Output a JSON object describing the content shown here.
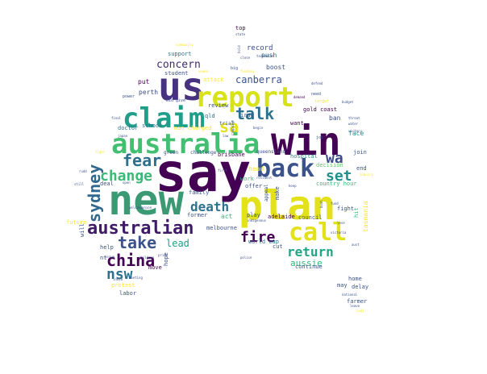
{
  "chart_data": {
    "type": "wordcloud",
    "palette": [
      "#440154",
      "#3b528b",
      "#21918c",
      "#5ec962",
      "#fde725"
    ],
    "words": [
      {
        "text": "say",
        "weight": 100,
        "color": "#440154"
      },
      {
        "text": "new",
        "weight": 95,
        "color": "#3b9a74"
      },
      {
        "text": "plan",
        "weight": 90,
        "color": "#e3e11a"
      },
      {
        "text": "win",
        "weight": 88,
        "color": "#440154"
      },
      {
        "text": "us",
        "weight": 80,
        "color": "#46327e"
      },
      {
        "text": "australia",
        "weight": 78,
        "color": "#43bf71"
      },
      {
        "text": "report",
        "weight": 70,
        "color": "#d8e219"
      },
      {
        "text": "claim",
        "weight": 66,
        "color": "#1f9e89"
      },
      {
        "text": "back",
        "weight": 62,
        "color": "#3b528b"
      },
      {
        "text": "call",
        "weight": 60,
        "color": "#e3e11a"
      },
      {
        "text": "australian",
        "weight": 52,
        "color": "#3e1a67"
      },
      {
        "text": "sydney",
        "weight": 40,
        "color": "#31688e"
      },
      {
        "text": "fear",
        "weight": 40,
        "color": "#2e6f8e"
      },
      {
        "text": "talk",
        "weight": 38,
        "color": "#2c728e"
      },
      {
        "text": "sa",
        "weight": 36,
        "color": "#e3e11a"
      },
      {
        "text": "change",
        "weight": 34,
        "color": "#3aba76"
      },
      {
        "text": "take",
        "weight": 36,
        "color": "#3b528b"
      },
      {
        "text": "china",
        "weight": 34,
        "color": "#440154"
      },
      {
        "text": "death",
        "weight": 32,
        "color": "#2c728e"
      },
      {
        "text": "return",
        "weight": 32,
        "color": "#21a585"
      },
      {
        "text": "fire",
        "weight": 32,
        "color": "#440154"
      },
      {
        "text": "wa",
        "weight": 30,
        "color": "#3e4a89"
      },
      {
        "text": "set",
        "weight": 30,
        "color": "#21918c"
      },
      {
        "text": "nsw",
        "weight": 30,
        "color": "#2c728e"
      },
      {
        "text": "concern",
        "weight": 20,
        "color": "#3f2c70"
      },
      {
        "text": "canberra",
        "weight": 18,
        "color": "#3b528b"
      },
      {
        "text": "lead",
        "weight": 18,
        "color": "#1f9e89"
      },
      {
        "text": "aussie",
        "weight": 18,
        "color": "#35b779"
      },
      {
        "text": "record",
        "weight": 13,
        "color": "#3b528b"
      },
      {
        "text": "push",
        "weight": 11,
        "color": "#31688e"
      },
      {
        "text": "boost",
        "weight": 12,
        "color": "#3b528b"
      },
      {
        "text": "support",
        "weight": 11,
        "color": "#2c728e"
      },
      {
        "text": "student",
        "weight": 10,
        "color": "#3b528b"
      },
      {
        "text": "put",
        "weight": 10,
        "color": "#440154"
      },
      {
        "text": "perth",
        "weight": 11,
        "color": "#3b528b"
      },
      {
        "text": "review",
        "weight": 10,
        "color": "#3b528b"
      },
      {
        "text": "gold coast",
        "weight": 11,
        "color": "#440154"
      },
      {
        "text": "iraq",
        "weight": 10,
        "color": "#3b528b"
      },
      {
        "text": "want",
        "weight": 10,
        "color": "#440154"
      },
      {
        "text": "ban",
        "weight": 10,
        "color": "#3b528b"
      },
      {
        "text": "face",
        "weight": 11,
        "color": "#21918c"
      },
      {
        "text": "school",
        "weight": 10,
        "color": "#2c728e"
      },
      {
        "text": "doctor",
        "weight": 10,
        "color": "#2c728e"
      },
      {
        "text": "man charged",
        "weight": 10,
        "color": "#fde725"
      },
      {
        "text": "qld",
        "weight": 10,
        "color": "#31688e"
      },
      {
        "text": "brisbane",
        "weight": 10,
        "color": "#440154"
      },
      {
        "text": "hospital",
        "weight": 10,
        "color": "#21918c"
      },
      {
        "text": "join",
        "weight": 10,
        "color": "#3b528b"
      },
      {
        "text": "decision",
        "weight": 10,
        "color": "#5ec962"
      },
      {
        "text": "end",
        "weight": 10,
        "color": "#3b528b"
      },
      {
        "text": "work",
        "weight": 10,
        "color": "#35b779"
      },
      {
        "text": "offer",
        "weight": 10,
        "color": "#3b528b"
      },
      {
        "text": "family",
        "weight": 9,
        "color": "#3b528b"
      },
      {
        "text": "country hour",
        "weight": 10,
        "color": "#35b779"
      },
      {
        "text": "fight",
        "weight": 10,
        "color": "#3b528b"
      },
      {
        "text": "make",
        "weight": 9,
        "color": "#3b528b"
      },
      {
        "text": "act",
        "weight": 10,
        "color": "#35b779"
      },
      {
        "text": "play",
        "weight": 9,
        "color": "#3b528b"
      },
      {
        "text": "adelaide",
        "weight": 10,
        "color": "#440154"
      },
      {
        "text": "council",
        "weight": 10,
        "color": "#3b528b"
      },
      {
        "text": "former",
        "weight": 10,
        "color": "#3b528b"
      },
      {
        "text": "melbourne",
        "weight": 10,
        "color": "#3b528b"
      },
      {
        "text": "world cup",
        "weight": 10,
        "color": "#2c728e"
      },
      {
        "text": "cut",
        "weight": 10,
        "color": "#3b528b"
      },
      {
        "text": "continue",
        "weight": 10,
        "color": "#3b528b"
      },
      {
        "text": "home",
        "weight": 10,
        "color": "#3b528b"
      },
      {
        "text": "may",
        "weight": 10,
        "color": "#3b528b"
      },
      {
        "text": "delay",
        "weight": 10,
        "color": "#3b528b"
      },
      {
        "text": "farmer",
        "weight": 10,
        "color": "#3b528b"
      },
      {
        "text": "hope",
        "weight": 9,
        "color": "#3b528b"
      },
      {
        "text": "move",
        "weight": 10,
        "color": "#440154"
      },
      {
        "text": "future",
        "weight": 10,
        "color": "#fde725"
      },
      {
        "text": "will",
        "weight": 9,
        "color": "#3b528b"
      },
      {
        "text": "help",
        "weight": 10,
        "color": "#3b528b"
      },
      {
        "text": "nt",
        "weight": 9,
        "color": "#3b528b"
      },
      {
        "text": "protest",
        "weight": 10,
        "color": "#fde725"
      },
      {
        "text": "labor",
        "weight": 10,
        "color": "#3b528b"
      },
      {
        "text": "deal",
        "weight": 9,
        "color": "#3b528b"
      },
      {
        "text": "head",
        "weight": 10,
        "color": "#fde725"
      },
      {
        "text": "attack",
        "weight": 9,
        "color": "#fde725"
      },
      {
        "text": "top",
        "weight": 9,
        "color": "#440154"
      },
      {
        "text": "tasmania",
        "weight": 10,
        "color": "#fde725"
      },
      {
        "text": "hit",
        "weight": 9,
        "color": "#35b779"
      },
      {
        "text": "green",
        "weight": 7,
        "color": "#3b528b"
      },
      {
        "text": "challenge",
        "weight": 7,
        "color": "#3b528b"
      },
      {
        "text": "trial",
        "weight": 7,
        "color": "#3b528b"
      },
      {
        "text": "queensland",
        "weight": 7,
        "color": "#3b528b"
      },
      {
        "text": "appeal",
        "weight": 7,
        "color": "#3b528b"
      },
      {
        "text": "community",
        "weight": 5,
        "color": "#fde725"
      },
      {
        "text": "bid",
        "weight": 6,
        "color": "#3b528b"
      },
      {
        "text": "give",
        "weight": 6,
        "color": "#3b528b"
      },
      {
        "text": "power",
        "weight": 6,
        "color": "#3b528b"
      },
      {
        "text": "need",
        "weight": 6,
        "color": "#3b528b"
      },
      {
        "text": "target",
        "weight": 5,
        "color": "#fde725"
      },
      {
        "text": "demand",
        "weight": 5,
        "color": "#440154"
      },
      {
        "text": "state",
        "weight": 5,
        "color": "#3b528b"
      },
      {
        "text": "close",
        "weight": 5,
        "color": "#3b528b"
      },
      {
        "text": "tasmanian",
        "weight": 5,
        "color": "#3b528b"
      },
      {
        "text": "water",
        "weight": 5,
        "color": "#3b528b"
      },
      {
        "text": "threat",
        "weight": 5,
        "color": "#3b528b"
      },
      {
        "text": "victory",
        "weight": 5,
        "color": "#3b528b"
      },
      {
        "text": "budget",
        "weight": 5,
        "color": "#3b528b"
      },
      {
        "text": "defend",
        "weight": 5,
        "color": "#3b528b"
      },
      {
        "text": "funding",
        "weight": 5,
        "color": "#fde725"
      },
      {
        "text": "women",
        "weight": 5,
        "color": "#fde725"
      },
      {
        "text": "japan",
        "weight": 5,
        "color": "#3b528b"
      },
      {
        "text": "tiger",
        "weight": 5,
        "color": "#fde725"
      },
      {
        "text": "final",
        "weight": 5,
        "color": "#3b528b"
      },
      {
        "text": "rudd",
        "weight": 5,
        "color": "#3b528b"
      },
      {
        "text": "still",
        "weight": 5,
        "color": "#3b528b"
      },
      {
        "text": "welcome",
        "weight": 5,
        "color": "#3b528b"
      },
      {
        "text": "union",
        "weight": 5,
        "color": "#3b528b"
      },
      {
        "text": "open",
        "weight": 5,
        "color": "#3b528b"
      },
      {
        "text": "issue",
        "weight": 5,
        "color": "#3b528b"
      },
      {
        "text": "india",
        "weight": 5,
        "color": "#3b528b"
      },
      {
        "text": "meeting",
        "weight": 5,
        "color": "#3b528b"
      },
      {
        "text": "children",
        "weight": 5,
        "color": "#3b528b"
      },
      {
        "text": "prime",
        "weight": 5,
        "color": "#3b528b"
      },
      {
        "text": "resident",
        "weight": 5,
        "color": "#3b528b"
      },
      {
        "text": "keep",
        "weight": 5,
        "color": "#3b528b"
      },
      {
        "text": "indigenous",
        "weight": 5,
        "color": "#3b528b"
      },
      {
        "text": "campaign",
        "weight": 5,
        "color": "#3b528b"
      },
      {
        "text": "law",
        "weight": 5,
        "color": "#3b528b"
      },
      {
        "text": "big",
        "weight": 6,
        "color": "#3b528b"
      },
      {
        "text": "job",
        "weight": 5,
        "color": "#3b528b"
      },
      {
        "text": "fund",
        "weight": 5,
        "color": "#3b528b"
      },
      {
        "text": "bush",
        "weight": 5,
        "color": "#3b528b"
      },
      {
        "text": "lose",
        "weight": 5,
        "color": "#3b528b"
      },
      {
        "text": "aust",
        "weight": 5,
        "color": "#3b528b"
      },
      {
        "text": "national",
        "weight": 5,
        "color": "#3b528b"
      },
      {
        "text": "leave",
        "weight": 5,
        "color": "#3b528b"
      },
      {
        "text": "inquiry",
        "weight": 5,
        "color": "#fde725"
      },
      {
        "text": "victoria",
        "weight": 5,
        "color": "#3b528b"
      },
      {
        "text": "hold",
        "weight": 5,
        "color": "#3b528b"
      },
      {
        "text": "begin",
        "weight": 5,
        "color": "#3b528b"
      },
      {
        "text": "first",
        "weight": 5,
        "color": "#3b528b"
      },
      {
        "text": "police",
        "weight": 5,
        "color": "#3b528b"
      },
      {
        "text": "coal",
        "weight": 5,
        "color": "#fde725"
      }
    ]
  }
}
